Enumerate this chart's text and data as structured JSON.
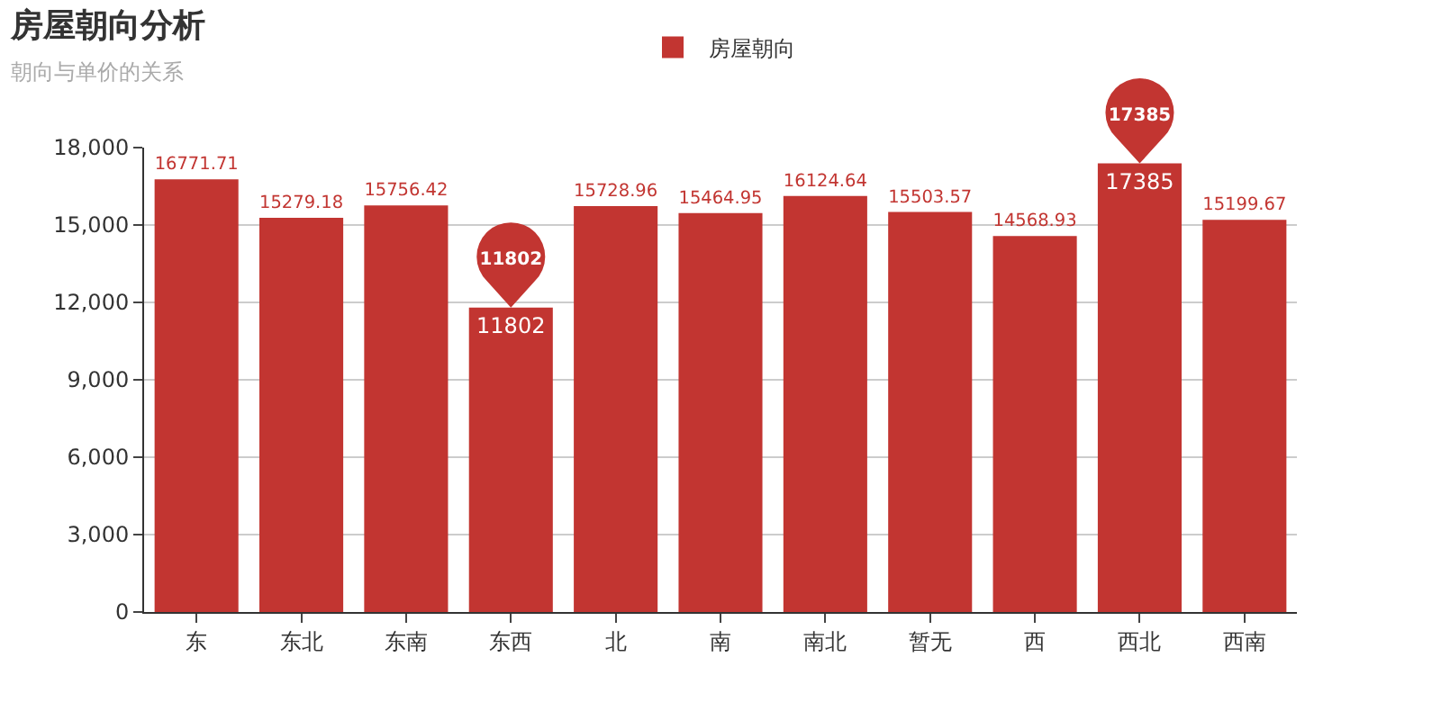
{
  "chart_data": {
    "type": "bar",
    "title": "房屋朝向分析",
    "subtitle": "朝向与单价的关系",
    "categories": [
      "东",
      "东北",
      "东南",
      "东西",
      "北",
      "南",
      "南北",
      "暂无",
      "西",
      "西北",
      "西南"
    ],
    "series": [
      {
        "name": "房屋朝向",
        "color": "#c23531",
        "values": [
          16771.71,
          15279.18,
          15756.42,
          11802,
          15728.96,
          15464.95,
          16124.64,
          15503.57,
          14568.93,
          17385,
          15199.67
        ]
      }
    ],
    "ylim": [
      0,
      18000
    ],
    "yticks": [
      {
        "value": 0,
        "label": "0"
      },
      {
        "value": 3000,
        "label": "3,000"
      },
      {
        "value": 6000,
        "label": "6,000"
      },
      {
        "value": 9000,
        "label": "9,000"
      },
      {
        "value": 12000,
        "label": "12,000"
      },
      {
        "value": 15000,
        "label": "15,000"
      },
      {
        "value": 18000,
        "label": "18,000"
      }
    ],
    "grid": "y",
    "legend": "top",
    "data_labels": true,
    "annotations": [
      {
        "text": "11802",
        "x": "东西",
        "y": 11802
      },
      {
        "text": "17385",
        "x": "西北",
        "y": 17385
      }
    ]
  }
}
